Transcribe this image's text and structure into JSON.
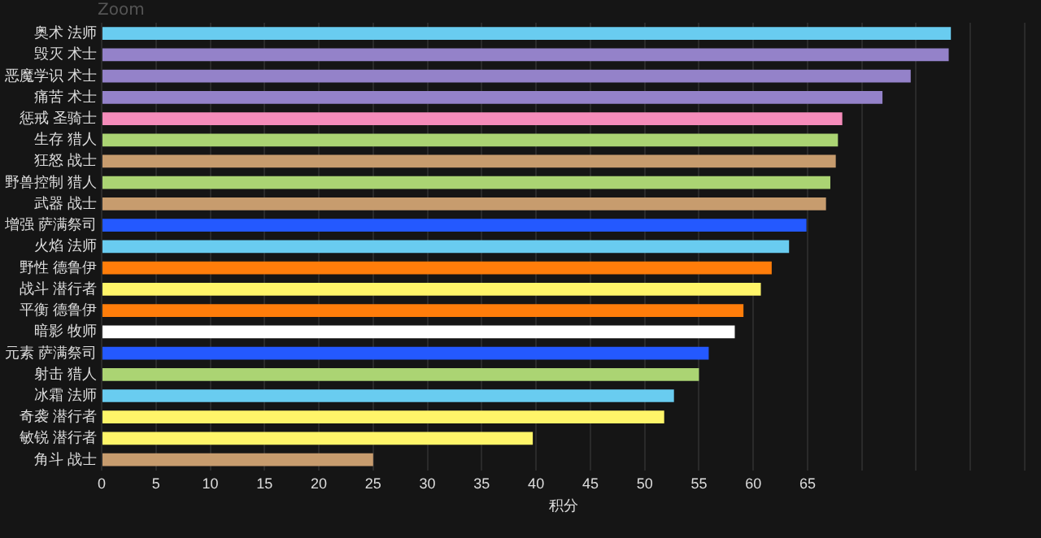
{
  "chart_data": {
    "type": "bar",
    "orientation": "horizontal",
    "xlabel": "积分",
    "annotations": [
      "Zoom"
    ],
    "categories": [
      "奥术 法师",
      "毁灭 术士",
      "恶魔学识 术士",
      "痛苦 术士",
      "惩戒 圣骑士",
      "生存 猎人",
      "狂怒 战士",
      "野兽控制 猎人",
      "武器 战士",
      "增强 萨满祭司",
      "火焰 法师",
      "野性 德鲁伊",
      "战斗 潜行者",
      "平衡 德鲁伊",
      "暗影 牧师",
      "元素 萨满祭司",
      "射击 猎人",
      "冰霜 法师",
      "奇袭 潜行者",
      "敏锐 潜行者",
      "角斗 战士"
    ],
    "values": [
      78.2,
      78.0,
      74.5,
      71.9,
      68.2,
      67.8,
      67.6,
      67.1,
      66.7,
      64.9,
      63.3,
      61.7,
      60.7,
      59.1,
      58.3,
      55.9,
      55.0,
      52.7,
      51.8,
      39.7,
      25.0
    ],
    "colors": [
      "#69ccf0",
      "#9482c9",
      "#9482c9",
      "#9482c9",
      "#f58cba",
      "#abd473",
      "#c79c6e",
      "#abd473",
      "#c79c6e",
      "#2459ff",
      "#69ccf0",
      "#ff7d0a",
      "#fff569",
      "#ff7d0a",
      "#ffffff",
      "#2459ff",
      "#abd473",
      "#69ccf0",
      "#fff569",
      "#fff569",
      "#c79c6e"
    ],
    "xlim": [
      0,
      85
    ],
    "xticks": [
      0,
      5,
      10,
      15,
      20,
      25,
      30,
      35,
      40,
      45,
      50,
      55,
      60,
      65,
      {
        "value": 70,
        "label": null
      },
      {
        "value": 75,
        "label": null
      },
      {
        "value": 80,
        "label": null
      },
      {
        "value": 85,
        "label": null
      }
    ],
    "grid": "x"
  }
}
